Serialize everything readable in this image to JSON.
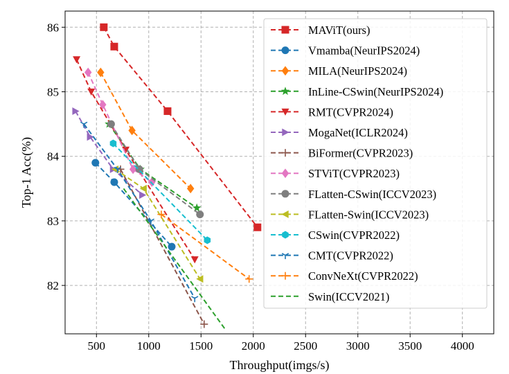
{
  "chart_data": {
    "type": "line",
    "xlabel": "Throughput(imgs/s)",
    "ylabel": "Top-1 Acc(%)",
    "xlim": [
      200,
      4300
    ],
    "ylim": [
      81.25,
      86.25
    ],
    "xticks": [
      500,
      1000,
      1500,
      2000,
      2500,
      3000,
      3500,
      4000
    ],
    "yticks": [
      82,
      83,
      84,
      85,
      86
    ],
    "grid": true,
    "legend_position": "right",
    "series": [
      {
        "name": "MAViT(ours)",
        "color": "#d62728",
        "marker": "square",
        "x": [
          570,
          670,
          1180,
          2040
        ],
        "y": [
          86.0,
          85.7,
          84.7,
          82.9
        ]
      },
      {
        "name": "Vmamba(NeurIPS2024)",
        "color": "#1f77b4",
        "marker": "circle",
        "x": [
          490,
          670,
          1220
        ],
        "y": [
          83.9,
          83.6,
          82.6
        ]
      },
      {
        "name": "MILA(NeurIPS2024)",
        "color": "#ff7f0e",
        "marker": "diamond",
        "x": [
          540,
          840,
          1400
        ],
        "y": [
          85.3,
          84.4,
          83.5
        ]
      },
      {
        "name": "InLine-CSwin(NeurIPS2024)",
        "color": "#2ca02c",
        "marker": "star",
        "x": [
          620,
          920,
          1460
        ],
        "y": [
          84.5,
          83.8,
          83.2
        ]
      },
      {
        "name": "RMT(CVPR2024)",
        "color": "#d62728",
        "marker": "triangle-down",
        "x": [
          310,
          450,
          780,
          1440
        ],
        "y": [
          85.5,
          85.0,
          84.1,
          82.4
        ]
      },
      {
        "name": "MogaNet(ICLR2024)",
        "color": "#9467bd",
        "marker": "triangle-right",
        "x": [
          300,
          440,
          660,
          940
        ],
        "y": [
          84.7,
          84.3,
          83.8,
          83.4
        ]
      },
      {
        "name": "BiFormer(CVPR2023)",
        "color": "#8c564b",
        "marker": "plus",
        "x": [
          730,
          1530
        ],
        "y": [
          83.8,
          81.4
        ]
      },
      {
        "name": "STViT(CVPR2023)",
        "color": "#e377c2",
        "marker": "diamond",
        "x": [
          420,
          560,
          850,
          1030
        ],
        "y": [
          85.3,
          84.8,
          83.8,
          83.6
        ]
      },
      {
        "name": "FLatten-CSwin(ICCV2023)",
        "color": "#7f7f7f",
        "marker": "circle",
        "x": [
          640,
          910,
          1490
        ],
        "y": [
          84.5,
          83.8,
          83.1
        ]
      },
      {
        "name": "FLatten-Swin(ICCV2023)",
        "color": "#bcbd22",
        "marker": "triangle-left",
        "x": [
          680,
          950,
          1490
        ],
        "y": [
          83.8,
          83.5,
          82.1
        ]
      },
      {
        "name": "CSwin(CVPR2022)",
        "color": "#17becf",
        "marker": "hexagon",
        "x": [
          660,
          1560
        ],
        "y": [
          84.2,
          82.7
        ]
      },
      {
        "name": "CMT(CVPR2022)",
        "color": "#1f77b4",
        "marker": "tri-down",
        "x": [
          380,
          700,
          1020,
          1440
        ],
        "y": [
          84.5,
          83.8,
          83.0,
          81.8
        ]
      },
      {
        "name": "ConvNeXt(CVPR2022)",
        "color": "#ff7f0e",
        "marker": "plus",
        "x": [
          1120,
          1960
        ],
        "y": [
          83.1,
          82.1
        ]
      },
      {
        "name": "Swin(ICCV2021)",
        "color": "#2ca02c",
        "marker": "none",
        "x": [
          760,
          1740
        ],
        "y": [
          83.5,
          81.3
        ]
      }
    ]
  }
}
